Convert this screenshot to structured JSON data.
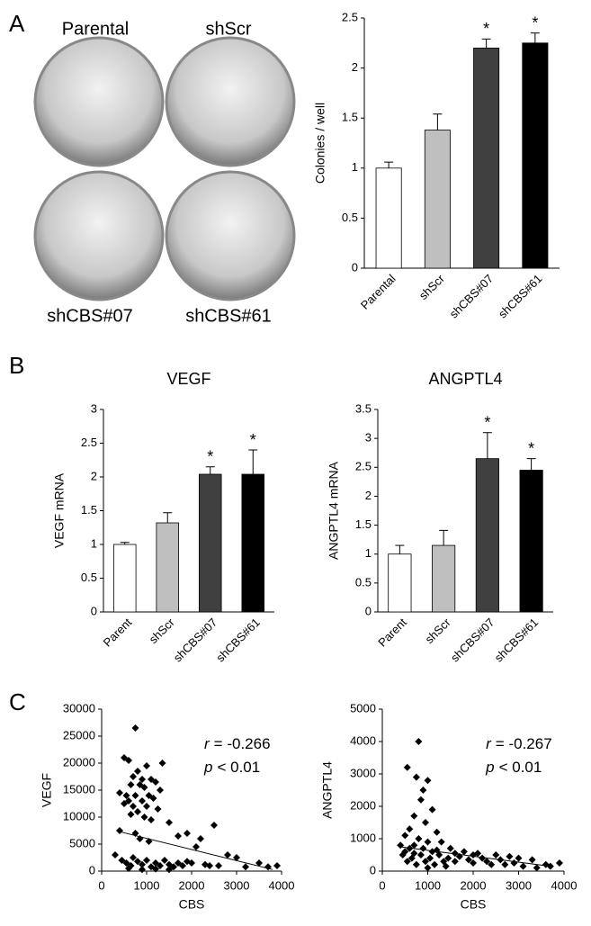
{
  "figure": {
    "panels": [
      "A",
      "B",
      "C"
    ],
    "plates": [
      "Parental",
      "shScr",
      "shCBS#07",
      "shCBS#61"
    ]
  },
  "chart_data": [
    {
      "type": "bar",
      "y_label": "Colonies / well",
      "categories": [
        "Parental",
        "shScr",
        "shCBS#07",
        "shCBS#61"
      ],
      "values": [
        1.0,
        1.38,
        2.2,
        2.25
      ],
      "errors": [
        0.06,
        0.16,
        0.09,
        0.1
      ],
      "colors": [
        "#ffffff",
        "#bfbfbf",
        "#404040",
        "#000000"
      ],
      "significance": [
        null,
        null,
        "*",
        "*"
      ],
      "ylim": [
        0,
        2.5
      ],
      "yticks": [
        0,
        0.5,
        1,
        1.5,
        2,
        2.5
      ]
    },
    {
      "type": "bar",
      "title": "VEGF",
      "y_label": "VEGF mRNA",
      "categories": [
        "Parent",
        "shScr",
        "shCBS#07",
        "shCBS#61"
      ],
      "values": [
        1.0,
        1.32,
        2.04,
        2.04
      ],
      "errors": [
        0.03,
        0.15,
        0.11,
        0.36
      ],
      "colors": [
        "#ffffff",
        "#bfbfbf",
        "#404040",
        "#000000"
      ],
      "significance": [
        null,
        null,
        "*",
        "*"
      ],
      "ylim": [
        0,
        3
      ],
      "yticks": [
        0,
        0.5,
        1,
        1.5,
        2,
        2.5,
        3
      ]
    },
    {
      "type": "bar",
      "title": "ANGPTL4",
      "y_label": "ANGPTL4 mRNA",
      "categories": [
        "Parent",
        "shScr",
        "shCBS#07",
        "shCBS#61"
      ],
      "values": [
        1.0,
        1.15,
        2.65,
        2.45
      ],
      "errors": [
        0.15,
        0.26,
        0.45,
        0.2
      ],
      "colors": [
        "#ffffff",
        "#bfbfbf",
        "#404040",
        "#000000"
      ],
      "significance": [
        null,
        null,
        "*",
        "*"
      ],
      "ylim": [
        0,
        3.5
      ],
      "yticks": [
        0,
        0.5,
        1,
        1.5,
        2,
        2.5,
        3,
        3.5
      ]
    },
    {
      "type": "scatter",
      "x_label": "CBS",
      "y_label": "VEGF",
      "color": "#000000",
      "stats": [
        {
          "symbol": "r",
          "text": "= -0.266"
        },
        {
          "symbol": "p",
          "text": "< 0.01"
        }
      ],
      "x": [
        750,
        500,
        600,
        1350,
        1000,
        800,
        700,
        900,
        1100,
        1200,
        650,
        850,
        950,
        1300,
        400,
        550,
        750,
        1050,
        1150,
        600,
        900,
        500,
        700,
        1000,
        1250,
        800,
        650,
        950,
        1100,
        1500,
        2500,
        400,
        750,
        1700,
        1900,
        2200,
        850,
        1050,
        2100,
        2800,
        3000,
        3500,
        3700,
        3900,
        300,
        450,
        550,
        650,
        700,
        800,
        900,
        1000,
        1100,
        1200,
        1300,
        1400,
        1500,
        1600,
        1700,
        1800,
        1900,
        2000,
        2300,
        2600,
        3200,
        600,
        900,
        1200,
        1500,
        2400
      ],
      "y": [
        26500,
        21000,
        20500,
        20000,
        19500,
        18500,
        17500,
        17000,
        17000,
        16500,
        16000,
        16000,
        15500,
        15000,
        14500,
        14000,
        14000,
        14000,
        13500,
        13000,
        13000,
        12500,
        12000,
        12000,
        11500,
        11000,
        10500,
        10000,
        9500,
        9000,
        8500,
        7500,
        7000,
        6500,
        7000,
        6000,
        6000,
        5500,
        4500,
        3000,
        2500,
        1500,
        800,
        1000,
        3000,
        2000,
        1500,
        1000,
        2500,
        1800,
        1200,
        2000,
        800,
        1500,
        1000,
        2000,
        1200,
        800,
        1500,
        1000,
        1800,
        1500,
        1200,
        1000,
        800,
        500,
        300,
        400,
        300,
        1000
      ],
      "trendline": {
        "x": [
          400,
          3800
        ],
        "y": [
          7300,
          300
        ]
      },
      "xlim": [
        0,
        4000
      ],
      "xticks": [
        0,
        1000,
        2000,
        3000,
        4000
      ],
      "ylim": [
        0,
        30000
      ],
      "yticks": [
        0,
        5000,
        10000,
        15000,
        20000,
        25000,
        30000
      ]
    },
    {
      "type": "scatter",
      "x_label": "CBS",
      "y_label": "ANGPTL4",
      "color": "#000000",
      "stats": [
        {
          "symbol": "r",
          "text": "= -0.267"
        },
        {
          "symbol": "p",
          "text": "< 0.01"
        }
      ],
      "x": [
        800,
        550,
        750,
        1000,
        900,
        850,
        1100,
        700,
        950,
        600,
        1200,
        500,
        800,
        1000,
        1300,
        400,
        700,
        1500,
        900,
        1100,
        1800,
        2100,
        2500,
        2800,
        3000,
        3300,
        3600,
        3900,
        450,
        550,
        650,
        750,
        850,
        950,
        1050,
        1150,
        1250,
        1350,
        1450,
        1600,
        1700,
        1900,
        2000,
        2200,
        2300,
        2400,
        2600,
        2700,
        2900,
        3100,
        3400,
        3700,
        600,
        1000,
        1400,
        500,
        700,
        1200,
        1600,
        2000
      ],
      "y": [
        4000,
        3200,
        2900,
        2800,
        2500,
        2200,
        1900,
        1700,
        1500,
        1300,
        1200,
        1100,
        1000,
        900,
        900,
        800,
        800,
        700,
        700,
        600,
        600,
        550,
        500,
        450,
        400,
        350,
        200,
        250,
        500,
        300,
        400,
        200,
        500,
        300,
        400,
        200,
        500,
        300,
        400,
        300,
        450,
        350,
        250,
        400,
        300,
        200,
        350,
        200,
        250,
        150,
        100,
        150,
        700,
        100,
        150,
        600,
        550,
        650,
        550,
        500
      ],
      "trendline": {
        "x": [
          400,
          3700
        ],
        "y": [
          750,
          150
        ]
      },
      "xlim": [
        0,
        4000
      ],
      "xticks": [
        0,
        1000,
        2000,
        3000,
        4000
      ],
      "ylim": [
        0,
        5000
      ],
      "yticks": [
        0,
        1000,
        2000,
        3000,
        4000,
        5000
      ]
    }
  ]
}
